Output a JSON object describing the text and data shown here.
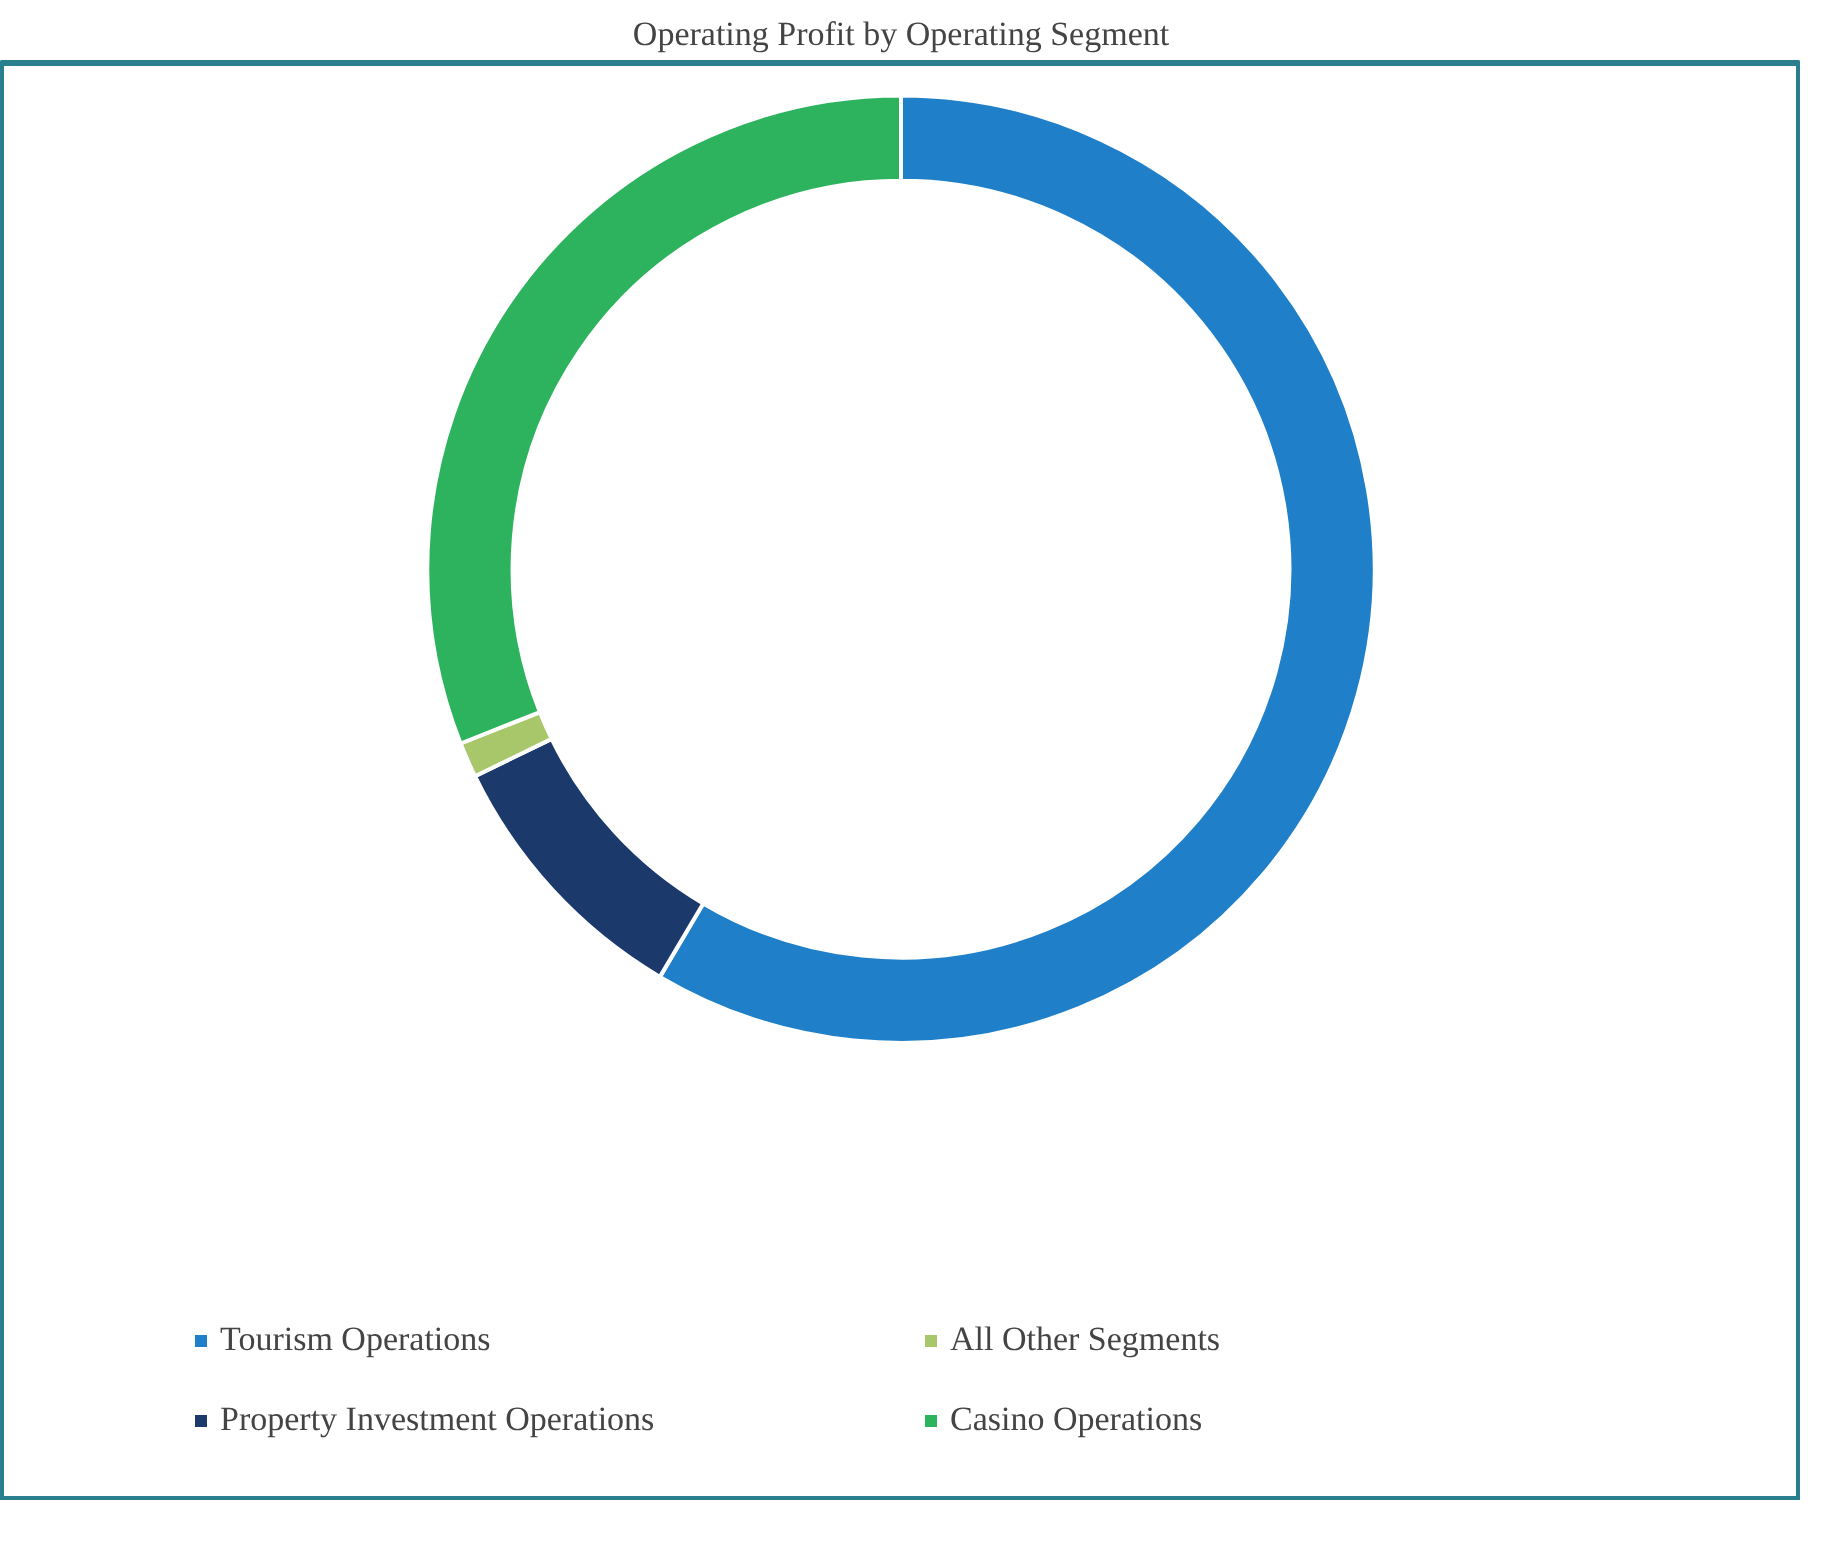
{
  "chart_data": {
    "type": "donut",
    "title": "Operating Profit by Operating Segment",
    "categories": [
      "Tourism Operations",
      "Property Investment Operations",
      "All Other Segments",
      "Casino Operations"
    ],
    "values": [
      58.5,
      9.3,
      1.2,
      31.0
    ],
    "colors": [
      "#1f7fc8",
      "#1b3a6b",
      "#a8c76a",
      "#2db35d"
    ],
    "legend": "bottom"
  }
}
